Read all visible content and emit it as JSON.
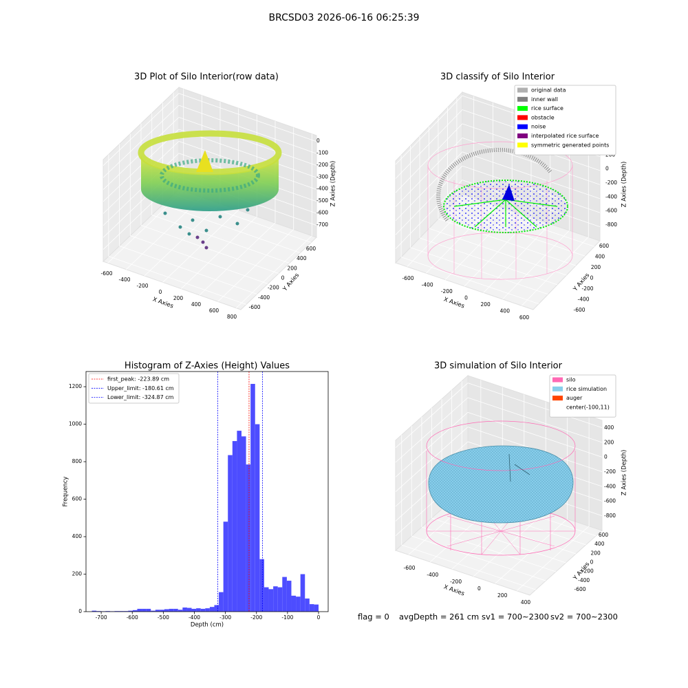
{
  "title": "BRCSD03 2026-06-16 06:25:39",
  "chart_data": [
    {
      "type": "scatter3d",
      "title": "3D Plot of Silo Interior(row data)",
      "xlabel": "X Axies",
      "ylabel": "Y Axies",
      "zlabel": "Z Axies (Depth)",
      "xlim": [
        -650,
        850
      ],
      "ylim": [
        -700,
        700
      ],
      "zlim": [
        -800,
        50
      ],
      "xticks": [
        -600,
        -400,
        -200,
        0,
        200,
        400,
        600,
        800
      ],
      "yticks": [
        -600,
        -400,
        -200,
        0,
        200,
        400,
        600
      ],
      "zticks": [
        0,
        -100,
        -200,
        -300,
        -400,
        -500,
        -600,
        -700
      ]
    },
    {
      "type": "scatter3d",
      "title": "3D classify of Silo Interior",
      "xlabel": "X Axies",
      "ylabel": "Y Axies",
      "zlabel": "Z Axies (Depth)",
      "xlim": [
        -720,
        720
      ],
      "ylim": [
        -720,
        720
      ],
      "zlim": [
        -1000,
        450
      ],
      "xticks": [
        -600,
        -400,
        -200,
        0,
        200,
        400,
        600
      ],
      "yticks": [
        -600,
        -400,
        -200,
        0,
        200,
        400,
        600
      ],
      "zticks": [
        400,
        200,
        0,
        -200,
        -400,
        -600,
        -800
      ],
      "legend": [
        {
          "name": "original data",
          "color": "#b0b0b0"
        },
        {
          "name": "inner wall",
          "color": "#808080"
        },
        {
          "name": "rice surface",
          "color": "#00ff00"
        },
        {
          "name": "obstacle",
          "color": "#ff0000"
        },
        {
          "name": "noise",
          "color": "#0000ff"
        },
        {
          "name": "interpolated rice surface",
          "color": "#800080"
        },
        {
          "name": "symmetric generated points",
          "color": "#ffff00"
        }
      ]
    },
    {
      "type": "histogram",
      "title": "Histogram of Z-Axies (Height) Values",
      "xlabel": "Depth (cm)",
      "ylabel": "Frequency",
      "color": "#4d4dff",
      "bins": [
        -730,
        -715.4,
        -700.8,
        -686.2,
        -671.6,
        -657,
        -642.4,
        -627.8,
        -613.2,
        -598.6,
        -584,
        -569.4,
        -554.8,
        -540.2,
        -525.6,
        -511,
        -496.4,
        -481.8,
        -467.2,
        -452.6,
        -438,
        -423.4,
        -408.8,
        -394.2,
        -379.6,
        -365,
        -350.4,
        -335.8,
        -321.2,
        -306.6,
        -292,
        -277.4,
        -262.8,
        -248.2,
        -233.6,
        -219,
        -204.4,
        -189.8,
        -175.2,
        -160.6,
        -146,
        -131.4,
        -116.8,
        -102.2,
        -87.6,
        -73,
        -58.4,
        -43.8,
        -29.2,
        -14.6,
        0
      ],
      "values": [
        5,
        3,
        2,
        3,
        2,
        3,
        3,
        3,
        5,
        8,
        15,
        15,
        15,
        5,
        10,
        10,
        13,
        15,
        15,
        10,
        22,
        20,
        15,
        18,
        15,
        18,
        25,
        35,
        104,
        480,
        835,
        910,
        965,
        935,
        785,
        1215,
        1000,
        280,
        130,
        120,
        135,
        130,
        185,
        165,
        85,
        80,
        200,
        70,
        40,
        38
      ],
      "xlim": [
        -749,
        31
      ],
      "ylim": [
        0,
        1281
      ],
      "xticks": [
        -700,
        -600,
        -500,
        -400,
        -300,
        -200,
        -100,
        0
      ],
      "yticks": [
        0,
        200,
        400,
        600,
        800,
        1000,
        1200
      ],
      "vlines": [
        {
          "name": "first_peak: -223.89 cm",
          "value": -223.89,
          "color": "#ff0000"
        },
        {
          "name": "Upper_limit: -180.61 cm",
          "value": -180.61,
          "color": "#0000ff"
        },
        {
          "name": "Lower_limit: -324.87 cm",
          "value": -324.87,
          "color": "#0000ff"
        }
      ]
    },
    {
      "type": "surface3d",
      "title": "3D simulation of Silo Interior",
      "xlabel": "X Axies",
      "ylabel": "Y Axies",
      "zlabel": "Z Axies (Depth)",
      "xlim": [
        -720,
        520
      ],
      "ylim": [
        -720,
        720
      ],
      "zlim": [
        -1000,
        500
      ],
      "xticks": [
        -600,
        -400,
        -200,
        0,
        200,
        400
      ],
      "yticks": [
        -600,
        -400,
        -200,
        0,
        200,
        400,
        600
      ],
      "zticks": [
        400,
        200,
        0,
        -200,
        -400,
        -600,
        -800
      ],
      "legend": [
        {
          "name": "silo",
          "color": "#ff69b4"
        },
        {
          "name": "rice simulation",
          "color": "#87ceeb"
        },
        {
          "name": "auger",
          "color": "#ff4500"
        },
        {
          "name": "center(-100,11)"
        }
      ]
    }
  ],
  "footer": [
    "flag = 0",
    "avgDepth = 261 cm",
    "sv1 = 700~2300",
    "sv2 = 700~2300"
  ]
}
